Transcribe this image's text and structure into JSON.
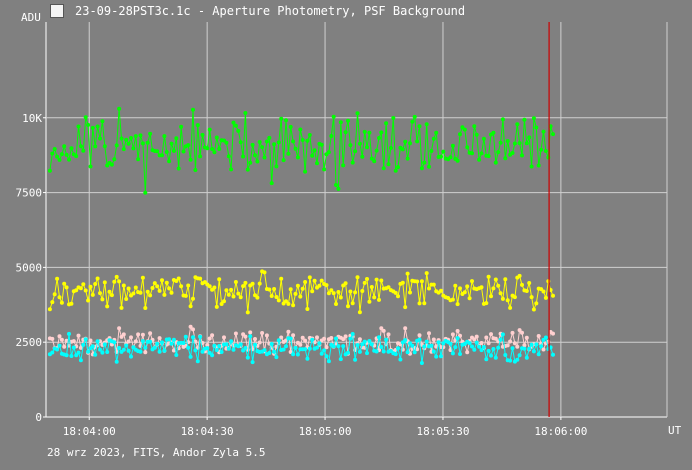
{
  "window": {
    "title": "23-09-28PST3c.1c - Aperture Photometry, PSF Background",
    "icon": "app-icon"
  },
  "footer": {
    "text": "28 wrz 2023, FITS, Andor Zyla 5.5"
  },
  "chart_data": {
    "type": "line",
    "ylabel": "ADU",
    "xlabel": "UT",
    "yticks": [
      {
        "value": 0,
        "label": "0"
      },
      {
        "value": 2500,
        "label": "2500"
      },
      {
        "value": 5000,
        "label": "5000"
      },
      {
        "value": 7500,
        "label": "7500"
      },
      {
        "value": 10000,
        "label": "10K"
      }
    ],
    "xticks": [
      {
        "value": "18:04:00",
        "label": "18:04:00"
      },
      {
        "value": "18:04:30",
        "label": "18:04:30"
      },
      {
        "value": "18:05:00",
        "label": "18:05:00"
      },
      {
        "value": "18:05:30",
        "label": "18:05:30"
      },
      {
        "value": "18:06:00",
        "label": "18:06:00"
      }
    ],
    "ylim": [
      0,
      13200
    ],
    "xlim": [
      "18:03:49",
      "18:06:27"
    ],
    "cursor_x": "18:05:57",
    "grid": true,
    "colors": {
      "background": "#808080",
      "grid": "#d0d0d0",
      "cursor": "#cc0000",
      "text": "#ffffff"
    },
    "series": [
      {
        "color": "#00ff00",
        "mean": 9000,
        "spread": 800,
        "seed": 11
      },
      {
        "color": "#ffff00",
        "mean": 4200,
        "spread": 420,
        "seed": 23
      },
      {
        "color": "#ffd0d0",
        "mean": 2500,
        "spread": 300,
        "seed": 37
      },
      {
        "color": "#00ffff",
        "mean": 2300,
        "spread": 320,
        "seed": 53
      }
    ],
    "x_start": "18:03:50",
    "x_end": "18:05:58",
    "point_count": 212
  }
}
